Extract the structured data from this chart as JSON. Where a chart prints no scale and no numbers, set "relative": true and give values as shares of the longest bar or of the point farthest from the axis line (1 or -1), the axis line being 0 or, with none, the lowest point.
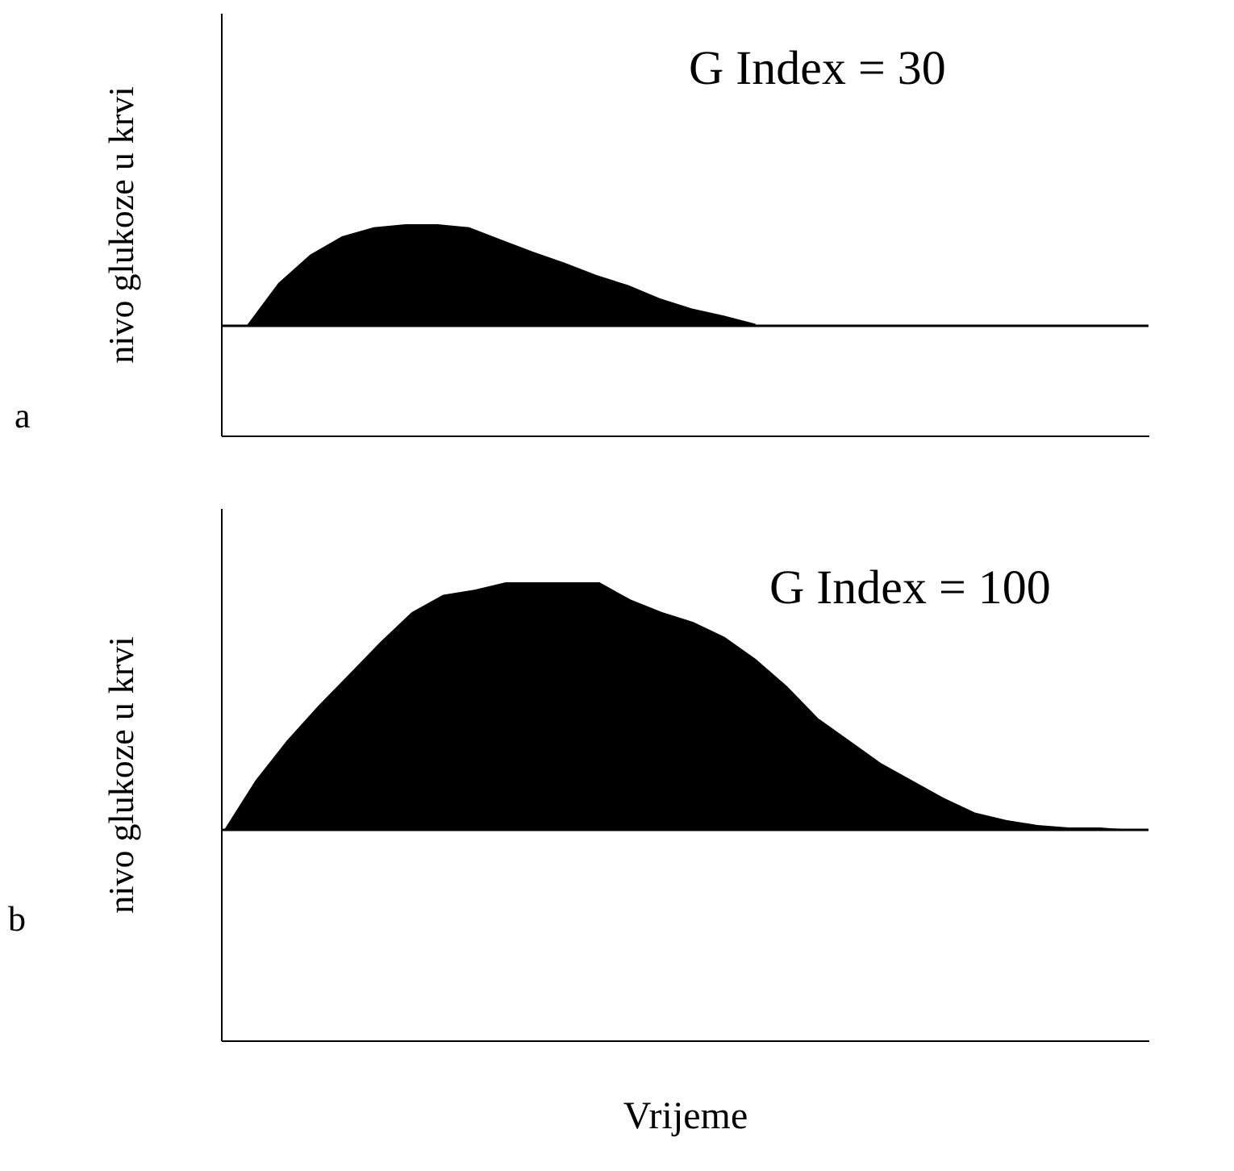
{
  "chart_data": [
    {
      "type": "area",
      "relative": true,
      "ylabel": "nivo glukoze u krvi",
      "annotations": [
        "G Index = 30",
        "a"
      ],
      "legend": false,
      "grid": false,
      "tick_labels": false,
      "ref_lines": [
        {
          "axis": "y",
          "value": 0,
          "color": "#000000"
        }
      ],
      "categories": [
        null,
        null,
        null,
        null,
        null,
        null,
        null,
        null,
        null,
        null,
        null,
        null,
        null,
        null,
        null,
        null,
        null,
        null,
        null,
        null,
        null,
        null,
        null,
        null,
        null,
        null,
        null,
        null,
        null
      ],
      "series": [
        {
          "color": "#000000",
          "values": [
            0,
            0.42,
            0.7,
            0.88,
            0.97,
            1,
            1,
            0.97,
            0.85,
            0.73,
            0.62,
            0.5,
            0.4,
            0.27,
            0.17,
            0.1,
            0.02,
            null,
            null,
            null,
            null,
            null,
            null,
            null,
            null,
            null,
            null,
            null,
            null
          ]
        }
      ]
    },
    {
      "type": "area",
      "relative": true,
      "ylabel": "nivo glukoze u krvi",
      "xlabel": "Vrijeme",
      "annotations": [
        "G Index = 100",
        "b"
      ],
      "legend": false,
      "grid": false,
      "tick_labels": false,
      "ref_lines": [
        {
          "axis": "y",
          "value": 0,
          "color": "#000000"
        }
      ],
      "categories": [
        null,
        null,
        null,
        null,
        null,
        null,
        null,
        null,
        null,
        null,
        null,
        null,
        null,
        null,
        null,
        null,
        null,
        null,
        null,
        null,
        null,
        null,
        null,
        null,
        null,
        null,
        null,
        null,
        null,
        null
      ],
      "series": [
        {
          "color": "#000000",
          "values": [
            0,
            0.2,
            0.36,
            0.5,
            0.63,
            0.76,
            0.88,
            0.95,
            0.97,
            1,
            1,
            1,
            1,
            0.93,
            0.88,
            0.84,
            0.78,
            0.69,
            0.58,
            0.45,
            0.36,
            0.27,
            0.2,
            0.13,
            0.07,
            0.04,
            0.02,
            0.01,
            0.01,
            0
          ]
        }
      ]
    }
  ]
}
